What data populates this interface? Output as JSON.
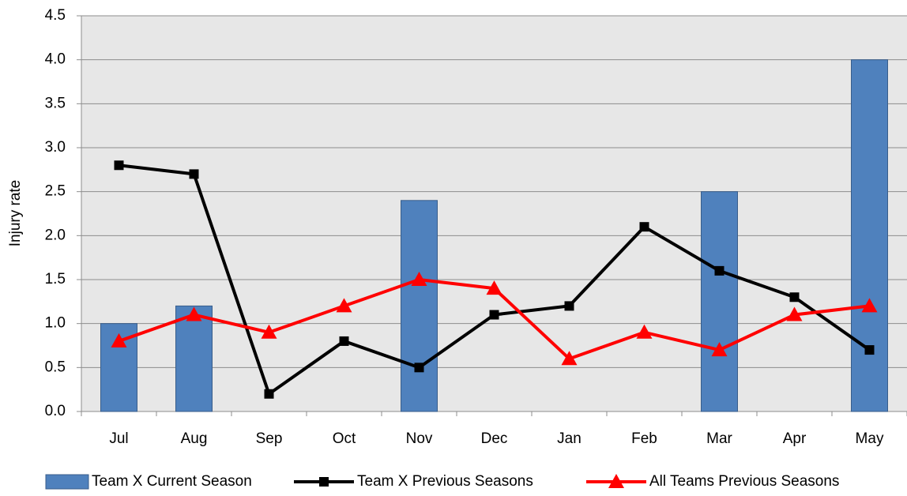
{
  "chart_data": {
    "type": "bar",
    "y_label": "Injury rate",
    "categories": [
      "Jul",
      "Aug",
      "Sep",
      "Oct",
      "Nov",
      "Dec",
      "Jan",
      "Feb",
      "Mar",
      "Apr",
      "May"
    ],
    "series": [
      {
        "name": "Team X Current Season",
        "type": "bar",
        "color": "#4f81bd",
        "values": [
          1.0,
          1.2,
          null,
          null,
          2.4,
          null,
          null,
          null,
          2.5,
          null,
          4.0
        ]
      },
      {
        "name": "Team X Previous Seasons",
        "type": "line",
        "marker": "square",
        "color": "#000000",
        "values": [
          2.8,
          2.7,
          0.2,
          0.8,
          0.5,
          1.1,
          1.2,
          2.1,
          1.6,
          1.3,
          0.7
        ]
      },
      {
        "name": "All Teams Previous Seasons",
        "type": "line",
        "marker": "triangle",
        "color": "#ff0000",
        "values": [
          0.8,
          1.1,
          0.9,
          1.2,
          1.5,
          1.4,
          0.6,
          0.9,
          0.7,
          1.1,
          1.2
        ]
      }
    ],
    "ylim": [
      0,
      4.5
    ],
    "yticks": [
      {
        "value": 0,
        "label": "0.0"
      },
      {
        "value": 0.5,
        "label": "0.5"
      },
      {
        "value": 1,
        "label": "1.0"
      },
      {
        "value": 1.5,
        "label": "1.5"
      },
      {
        "value": 2,
        "label": "2.0"
      },
      {
        "value": 2.5,
        "label": "2.5"
      },
      {
        "value": 3,
        "label": "3.0"
      },
      {
        "value": 3.5,
        "label": "3.5"
      },
      {
        "value": 4,
        "label": "4.0"
      },
      {
        "value": 4.5,
        "label": "4.5"
      }
    ],
    "grid": true,
    "legend": "bottom"
  }
}
